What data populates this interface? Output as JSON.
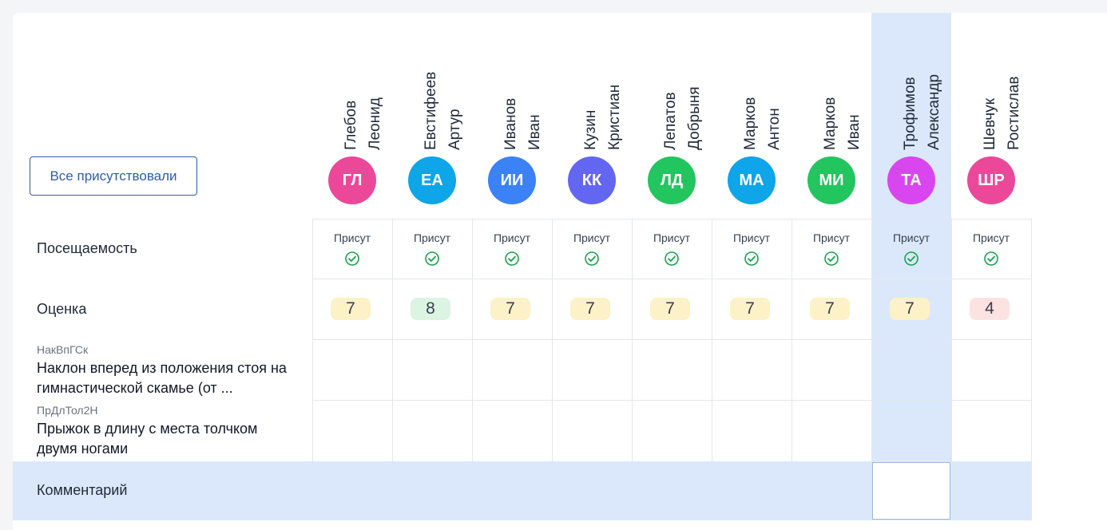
{
  "toolbar": {
    "all_present_label": "Все присутствовали"
  },
  "rows": {
    "attendance": "Посещаемость",
    "grade": "Оценка",
    "comment": "Комментарий"
  },
  "tasks": [
    {
      "code": "НакВпГСк",
      "title": "Наклон вперед из положения стоя на гимнастической скамье (от ..."
    },
    {
      "code": "ПрДлТол2Н",
      "title": "Прыжок в длину с места толчком двумя ногами"
    }
  ],
  "students": [
    {
      "last": "Глебов",
      "first": "Леонид",
      "initials": "ГЛ",
      "color": "#ec4899",
      "attendance": "Присут",
      "grade": "7",
      "grade_color": "#fdf1c7"
    },
    {
      "last": "Евстифеев",
      "first": "Артур",
      "initials": "ЕА",
      "color": "#0ea5e9",
      "attendance": "Присут",
      "grade": "8",
      "grade_color": "#dcf5e3"
    },
    {
      "last": "Иванов",
      "first": "Иван",
      "initials": "ИИ",
      "color": "#3b82f6",
      "attendance": "Присут",
      "grade": "7",
      "grade_color": "#fdf1c7"
    },
    {
      "last": "Кузин",
      "first": "Кристиан",
      "initials": "КК",
      "color": "#6366f1",
      "attendance": "Присут",
      "grade": "7",
      "grade_color": "#fdf1c7"
    },
    {
      "last": "Лепатов",
      "first": "Добрыня",
      "initials": "ЛД",
      "color": "#22c55e",
      "attendance": "Присут",
      "grade": "7",
      "grade_color": "#fdf1c7"
    },
    {
      "last": "Марков",
      "first": "Антон",
      "initials": "МА",
      "color": "#0ea5e9",
      "attendance": "Присут",
      "grade": "7",
      "grade_color": "#fdf1c7"
    },
    {
      "last": "Марков",
      "first": "Иван",
      "initials": "МИ",
      "color": "#22c55e",
      "attendance": "Присут",
      "grade": "7",
      "grade_color": "#fdf1c7"
    },
    {
      "last": "Трофимов",
      "first": "Александр",
      "initials": "ТА",
      "color": "#d946ef",
      "attendance": "Присут",
      "grade": "7",
      "grade_color": "#fdf1c7"
    },
    {
      "last": "Шевчук",
      "first": "Ростислав",
      "initials": "ШР",
      "color": "#ec4899",
      "attendance": "Присут",
      "grade": "4",
      "grade_color": "#fde2e2"
    }
  ],
  "icons": {
    "attendance_check": "check-circle-icon"
  },
  "colors": {
    "check": "#16a34a",
    "highlight": "#dbe8fb",
    "accent": "#2c5ea8"
  }
}
